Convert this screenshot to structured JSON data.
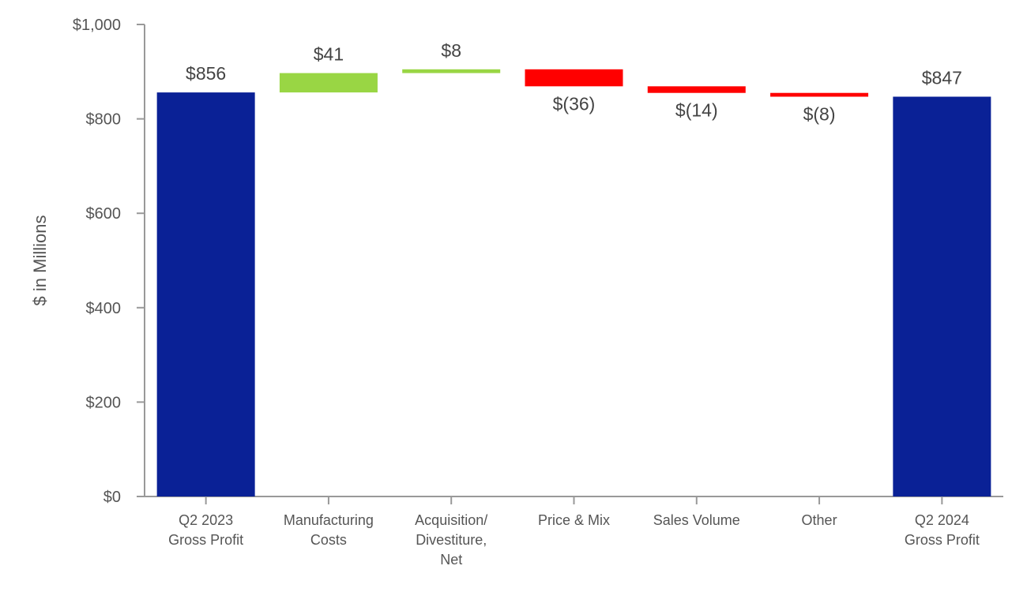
{
  "chart_data": {
    "type": "waterfall",
    "title": "",
    "ylabel": "$ in Millions",
    "xlabel": "",
    "ylim": [
      0,
      1000
    ],
    "yticks": [
      0,
      200,
      400,
      600,
      800,
      1000
    ],
    "ytick_labels": [
      "$0",
      "$200",
      "$400",
      "$600",
      "$800",
      "$1,000"
    ],
    "grid": false,
    "categories": [
      "Q2 2023\nGross Profit",
      "Manufacturing\nCosts",
      "Acquisition/\nDivestiture,\nNet",
      "Price & Mix",
      "Sales Volume",
      "Other",
      "Q2 2024\nGross Profit"
    ],
    "values": [
      856,
      41,
      8,
      -36,
      -14,
      -8,
      847
    ],
    "bar_kinds": [
      "total",
      "delta",
      "delta",
      "delta",
      "delta",
      "delta",
      "total"
    ],
    "data_labels": [
      "$856",
      "$41",
      "$8",
      "$(36)",
      "$(14)",
      "$(8)",
      "$847"
    ],
    "colors": {
      "total": "#0a2196",
      "increase": "#99d644",
      "decrease": "#ff0000",
      "axis": "#999999"
    }
  }
}
